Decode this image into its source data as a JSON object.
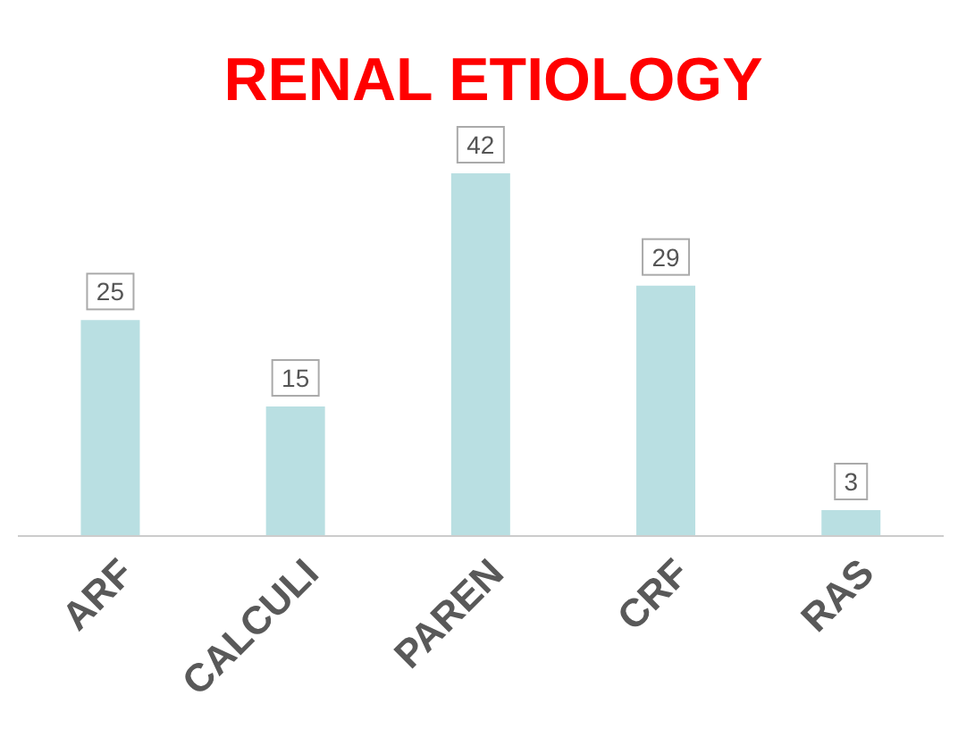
{
  "chart_data": {
    "type": "bar",
    "title": "RENAL ETIOLOGY",
    "categories": [
      "ARF",
      "CALCULI",
      "PAREN",
      "CRF",
      "RAS"
    ],
    "values": [
      25,
      15,
      42,
      29,
      3
    ],
    "color": "#b9dfe2",
    "data_labels": true
  }
}
